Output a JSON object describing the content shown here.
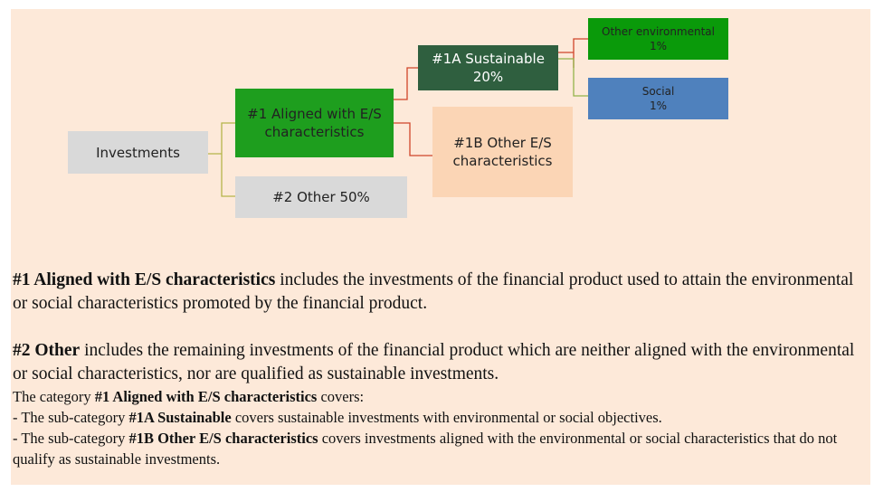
{
  "nodes": {
    "investments": {
      "label": "Investments"
    },
    "aligned": {
      "label": "#1 Aligned with E/S characteristics"
    },
    "other": {
      "label": "#2 Other 50%"
    },
    "sustainable": {
      "label": "#1A Sustainable",
      "value": "20%"
    },
    "other_es": {
      "label": "#1B Other E/S characteristics"
    },
    "other_env": {
      "label": "Other environmental",
      "value": "1%"
    },
    "social": {
      "label": "Social",
      "value": "1%"
    }
  },
  "text": {
    "p1": {
      "bold": "#1 Aligned with E/S characteristics",
      "after": " includes the investments of the financial product used to attain the environmental or social characteristics promoted by the financial product."
    },
    "p2": {
      "bold": "#2 Other",
      "after": " includes the remaining investments of the financial product which are neither aligned with the environmental or social characteristics, nor are qualified as sustainable investments."
    },
    "p3": {
      "before": "The category ",
      "bold": "#1 Aligned with E/S characteristics",
      "after": " covers:"
    },
    "p4": {
      "before": "- The sub-category ",
      "bold": "#1A Sustainable",
      "after": " covers sustainable investments with environmental or social objectives."
    },
    "p5": {
      "before": "- The sub-category ",
      "bold": "#1B Other E/S characteristics",
      "after": " covers investments aligned with the environmental or social characteristics that do not qualify as sustainable investments."
    }
  }
}
